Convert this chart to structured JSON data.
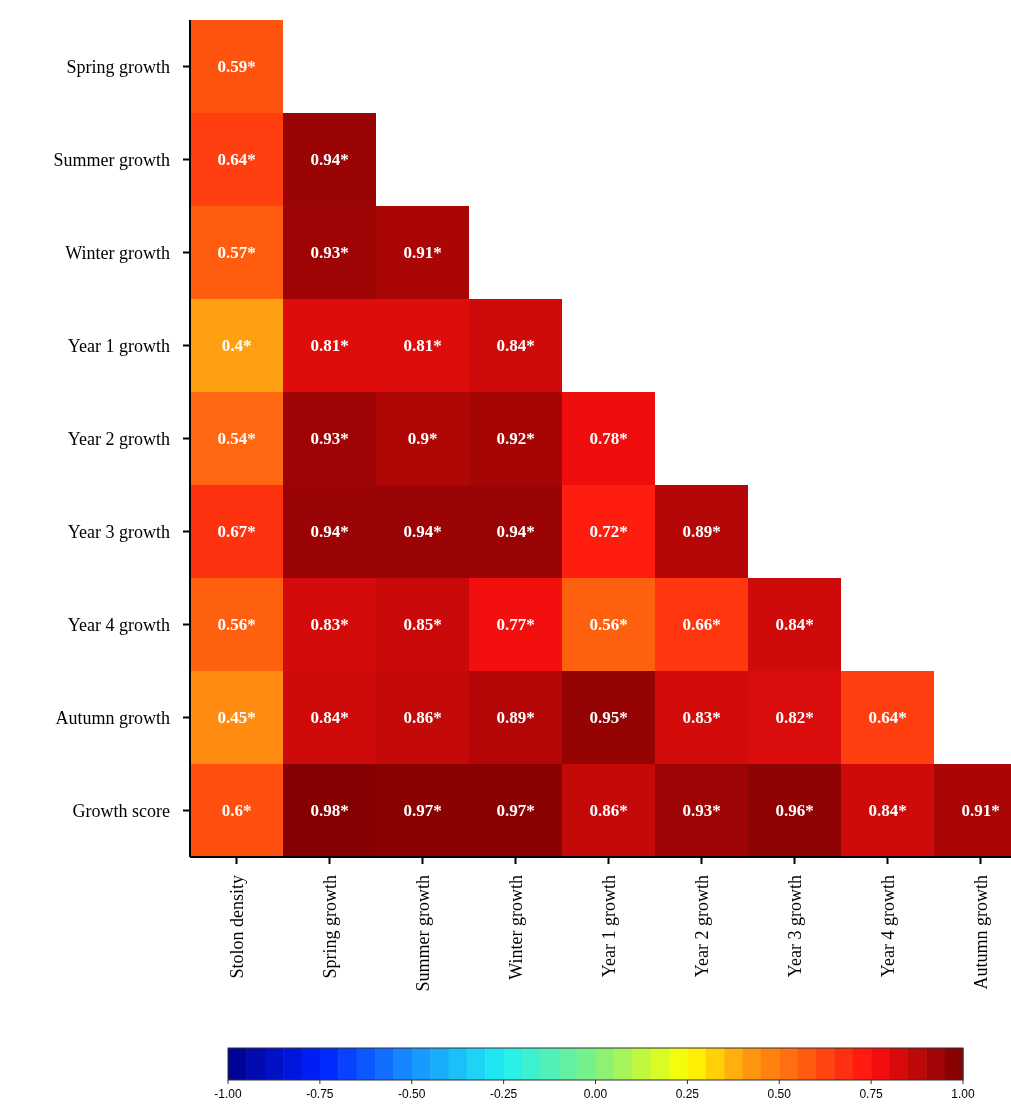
{
  "chart_data": {
    "type": "heatmap",
    "categories": [
      "Stolon density",
      "Spring growth",
      "Summer growth",
      "Winter growth",
      "Year 1 growth",
      "Year 2 growth",
      "Year 3 growth",
      "Year 4 growth",
      "Autumn growth"
    ],
    "y_categories": [
      "Spring growth",
      "Summer growth",
      "Winter growth",
      "Year 1 growth",
      "Year 2 growth",
      "Year 3 growth",
      "Year 4 growth",
      "Autumn growth",
      "Growth score"
    ],
    "cells": [
      [
        0.59,
        null,
        null,
        null,
        null,
        null,
        null,
        null,
        null
      ],
      [
        0.64,
        0.94,
        null,
        null,
        null,
        null,
        null,
        null,
        null
      ],
      [
        0.57,
        0.93,
        0.91,
        null,
        null,
        null,
        null,
        null,
        null
      ],
      [
        0.4,
        0.81,
        0.81,
        0.84,
        null,
        null,
        null,
        null,
        null
      ],
      [
        0.54,
        0.93,
        0.9,
        0.92,
        0.78,
        null,
        null,
        null,
        null
      ],
      [
        0.67,
        0.94,
        0.94,
        0.94,
        0.72,
        0.89,
        null,
        null,
        null
      ],
      [
        0.56,
        0.83,
        0.85,
        0.77,
        0.56,
        0.66,
        0.84,
        null,
        null
      ],
      [
        0.45,
        0.84,
        0.86,
        0.89,
        0.95,
        0.83,
        0.82,
        0.64,
        null
      ],
      [
        0.6,
        0.98,
        0.97,
        0.97,
        0.86,
        0.93,
        0.96,
        0.84,
        0.91
      ]
    ],
    "cell_labels": [
      [
        "0.59*",
        null,
        null,
        null,
        null,
        null,
        null,
        null,
        null
      ],
      [
        "0.64*",
        "0.94*",
        null,
        null,
        null,
        null,
        null,
        null,
        null
      ],
      [
        "0.57*",
        "0.93*",
        "0.91*",
        null,
        null,
        null,
        null,
        null,
        null
      ],
      [
        "0.4*",
        "0.81*",
        "0.81*",
        "0.84*",
        null,
        null,
        null,
        null,
        null
      ],
      [
        "0.54*",
        "0.93*",
        "0.9*",
        "0.92*",
        "0.78*",
        null,
        null,
        null,
        null
      ],
      [
        "0.67*",
        "0.94*",
        "0.94*",
        "0.94*",
        "0.72*",
        "0.89*",
        null,
        null,
        null
      ],
      [
        "0.56*",
        "0.83*",
        "0.85*",
        "0.77*",
        "0.56*",
        "0.66*",
        "0.84*",
        null,
        null
      ],
      [
        "0.45*",
        "0.84*",
        "0.86*",
        "0.89*",
        "0.95*",
        "0.83*",
        "0.82*",
        "0.64*",
        null
      ],
      [
        "0.6*",
        "0.98*",
        "0.97*",
        "0.97*",
        "0.86*",
        "0.93*",
        "0.96*",
        "0.84*",
        "0.91*"
      ]
    ],
    "clim": [
      -1,
      1
    ],
    "cticks": [
      {
        "value": -1,
        "label": "-1.00"
      },
      {
        "value": -0.75,
        "label": "-0.75"
      },
      {
        "value": -0.5,
        "label": "-0.50"
      },
      {
        "value": -0.25,
        "label": "-0.25"
      },
      {
        "value": 0,
        "label": "0.00"
      },
      {
        "value": 0.25,
        "label": "0.25"
      },
      {
        "value": 0.5,
        "label": "0.50"
      },
      {
        "value": 0.75,
        "label": "0.75"
      },
      {
        "value": 1,
        "label": "1.00"
      }
    ]
  }
}
